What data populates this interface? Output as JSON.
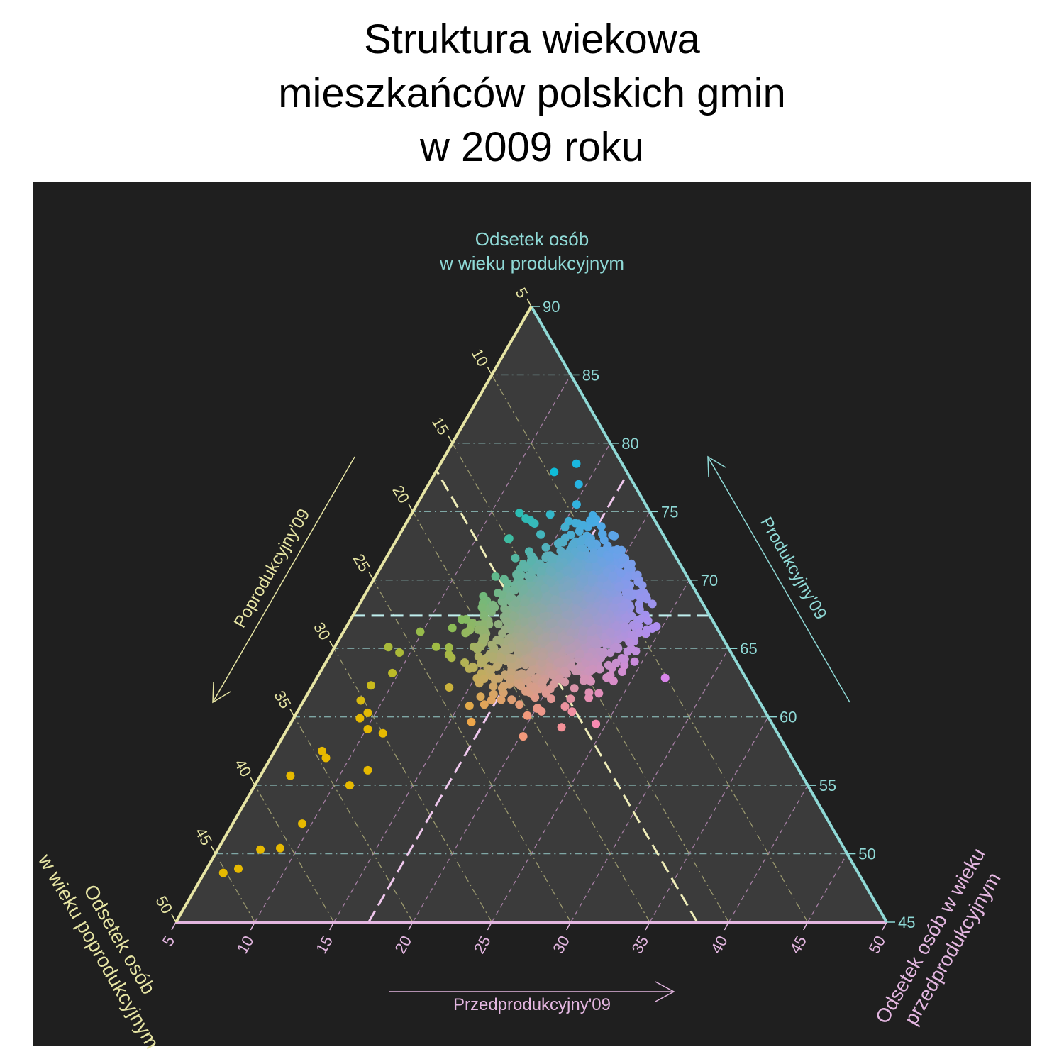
{
  "title_lines": [
    "Struktura wiekowa",
    "mieszkańców polskich gmin",
    "w 2009 roku"
  ],
  "colors": {
    "background": "#ffffff",
    "panel": "#1f1f1f",
    "triangle": "#3b3b3b",
    "pre_axis": "#e3b6e0",
    "prod_axis": "#8fd9d6",
    "post_axis": "#e6e4a3",
    "grid": "#8a8a8a"
  },
  "chart_data": {
    "type": "scatter",
    "subtype": "ternary",
    "title": "Struktura wiekowa mieszkańców polskich gmin w 2009 roku",
    "axes": {
      "pre": {
        "title": "Odsetek osób w wieku przedprodukcyjnym",
        "title_lines": [
          "Odsetek osób w wieku",
          "przedprodukcyjnym"
        ],
        "arrow_label": "Przedprodukcyjny'09",
        "range": [
          5,
          50
        ],
        "ticks": [
          5,
          10,
          15,
          20,
          25,
          30,
          35,
          40,
          45,
          50
        ]
      },
      "prod": {
        "title": "Odsetek osób w wieku produkcyjnym",
        "title_lines": [
          "Odsetek osób",
          "w wieku produkcyjnym"
        ],
        "arrow_label": "Produkcyjny'09",
        "range": [
          45,
          90
        ],
        "ticks": [
          45,
          50,
          55,
          60,
          65,
          70,
          75,
          80,
          85,
          90
        ]
      },
      "post": {
        "title": "Odsetek osób w wieku poprodukcyjnym",
        "title_lines": [
          "Odsetek osób",
          "w wieku poprodukcyjnym"
        ],
        "arrow_label": "Poprodukcyjny'09",
        "range": [
          5,
          50
        ],
        "ticks": [
          5,
          10,
          15,
          20,
          25,
          30,
          35,
          40,
          45,
          50
        ]
      }
    },
    "reference_lines": {
      "pre": 17.2,
      "prod": 67.4,
      "post": 17.0
    },
    "grid": true,
    "point_color_note": "color encodes composition: blend of cyan (produkcyjny), magenta (przedprodukcyjny), yellow (poprodukcyjny)",
    "series": [
      {
        "points": [
          {
            "pre": 13.6,
            "prod": 78.5,
            "post": 7.9
          },
          {
            "pre": 12.5,
            "prod": 77.9,
            "post": 9.6
          },
          {
            "pre": 14.5,
            "prod": 77.0,
            "post": 8.5
          },
          {
            "pre": 11.8,
            "prod": 74.9,
            "post": 13.3
          },
          {
            "pre": 12.4,
            "prod": 74.5,
            "post": 13.1
          },
          {
            "pre": 13.8,
            "prod": 74.8,
            "post": 11.4
          },
          {
            "pre": 13.0,
            "prod": 74.2,
            "post": 12.8
          },
          {
            "pre": 16.3,
            "prod": 74.0,
            "post": 9.7
          },
          {
            "pre": 17.5,
            "prod": 72.6,
            "post": 9.9
          },
          {
            "pre": 19.4,
            "prod": 68.7,
            "post": 11.9
          },
          {
            "pre": 20.6,
            "prod": 68.0,
            "post": 11.4
          },
          {
            "pre": 21.1,
            "prod": 67.2,
            "post": 11.7
          },
          {
            "pre": 21.3,
            "prod": 65.5,
            "post": 13.2
          },
          {
            "pre": 20.8,
            "prod": 64.6,
            "post": 14.6
          },
          {
            "pre": 19.8,
            "prod": 64.0,
            "post": 16.2
          },
          {
            "pre": 24.1,
            "prod": 63.3,
            "post": 12.6
          },
          {
            "pre": 19.4,
            "prod": 62.6,
            "post": 18.0
          },
          {
            "pre": 17.1,
            "prod": 62.1,
            "post": 20.8
          },
          {
            "pre": 8.4,
            "prod": 65.1,
            "post": 26.5
          },
          {
            "pre": 9.3,
            "prod": 64.7,
            "post": 26.0
          },
          {
            "pre": 9.6,
            "prod": 63.2,
            "post": 27.2
          },
          {
            "pre": 8.7,
            "prod": 62.3,
            "post": 29.0
          },
          {
            "pre": 8.6,
            "prod": 61.2,
            "post": 30.2
          },
          {
            "pre": 9.5,
            "prod": 60.3,
            "post": 30.2
          },
          {
            "pre": 9.2,
            "prod": 59.9,
            "post": 30.9
          },
          {
            "pre": 10.1,
            "prod": 59.1,
            "post": 30.8
          },
          {
            "pre": 11.2,
            "prod": 58.8,
            "post": 30.0
          },
          {
            "pre": 8.0,
            "prod": 57.5,
            "post": 34.5
          },
          {
            "pre": 8.5,
            "prod": 57.0,
            "post": 34.5
          },
          {
            "pre": 11.6,
            "prod": 56.1,
            "post": 32.3
          },
          {
            "pre": 11.0,
            "prod": 55.0,
            "post": 34.0
          },
          {
            "pre": 6.9,
            "prod": 55.7,
            "post": 37.4
          },
          {
            "pre": 9.4,
            "prod": 52.2,
            "post": 38.4
          },
          {
            "pre": 7.7,
            "prod": 50.3,
            "post": 42.0
          },
          {
            "pre": 8.9,
            "prod": 50.4,
            "post": 40.7
          },
          {
            "pre": 7.0,
            "prod": 48.9,
            "post": 44.1
          },
          {
            "pre": 6.2,
            "prod": 48.6,
            "post": 45.2
          },
          {
            "pre": 19.7,
            "prod": 60.1,
            "post": 20.2
          },
          {
            "pre": 18.8,
            "prod": 60.9,
            "post": 20.3
          },
          {
            "pre": 16.0,
            "prod": 70.6,
            "post": 13.4
          },
          {
            "pre": 17.5,
            "prod": 71.0,
            "post": 11.5
          }
        ]
      }
    ]
  }
}
